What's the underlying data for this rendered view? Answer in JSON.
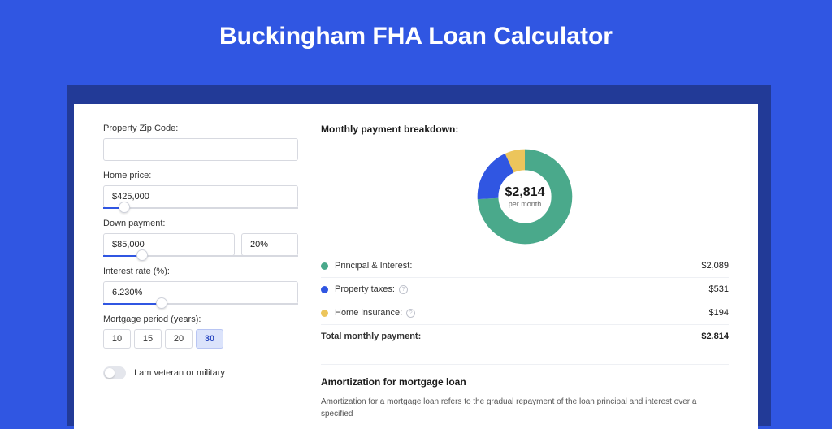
{
  "page": {
    "title": "Buckingham FHA Loan Calculator",
    "background_color": "#3056e2",
    "card_bg": "#ffffff"
  },
  "form": {
    "zip": {
      "label": "Property Zip Code:",
      "value": ""
    },
    "home_price": {
      "label": "Home price:",
      "value": "$425,000",
      "slider_pct": 11
    },
    "down_payment": {
      "label": "Down payment:",
      "amount": "$85,000",
      "percent": "20%",
      "slider_pct": 20
    },
    "interest_rate": {
      "label": "Interest rate (%):",
      "value": "6.230%",
      "slider_pct": 30
    },
    "mortgage_period": {
      "label": "Mortgage period (years):",
      "options": [
        "10",
        "15",
        "20",
        "30"
      ],
      "selected": "30"
    },
    "veteran": {
      "label": "I am veteran or military",
      "on": false
    }
  },
  "breakdown": {
    "title": "Monthly payment breakdown:",
    "donut": {
      "center_value": "$2,814",
      "center_sub": "per month",
      "slices": [
        {
          "key": "principal_interest",
          "color": "#4aa98b",
          "pct": 74
        },
        {
          "key": "property_taxes",
          "color": "#3056e2",
          "pct": 19
        },
        {
          "key": "home_insurance",
          "color": "#ecc55b",
          "pct": 7
        }
      ]
    },
    "rows": [
      {
        "label": "Principal & Interest:",
        "amount": "$2,089",
        "color": "#4aa98b",
        "info": false
      },
      {
        "label": "Property taxes:",
        "amount": "$531",
        "color": "#3056e2",
        "info": true
      },
      {
        "label": "Home insurance:",
        "amount": "$194",
        "color": "#ecc55b",
        "info": true
      }
    ],
    "total": {
      "label": "Total monthly payment:",
      "amount": "$2,814"
    }
  },
  "amortization": {
    "title": "Amortization for mortgage loan",
    "text": "Amortization for a mortgage loan refers to the gradual repayment of the loan principal and interest over a specified"
  }
}
